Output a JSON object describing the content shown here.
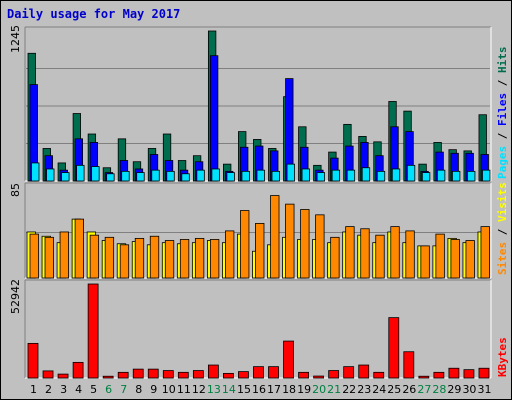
{
  "title": "Daily usage for May 2017",
  "colors": {
    "hits": "#006e4e",
    "files": "#0000ff",
    "pages": "#00e0ff",
    "visits": "#ffff00",
    "sites": "#ff8800",
    "kbytes": "#ff0000",
    "weekday": "#000000",
    "weekend": "#008040",
    "panel_bg": "#c0c0c0"
  },
  "chart_data": [
    {
      "type": "bar",
      "name": "hits-files-pages",
      "categories": [
        "1",
        "2",
        "3",
        "4",
        "5",
        "6",
        "7",
        "8",
        "9",
        "10",
        "11",
        "12",
        "13",
        "14",
        "15",
        "16",
        "17",
        "18",
        "19",
        "20",
        "21",
        "22",
        "23",
        "24",
        "25",
        "26",
        "27",
        "28",
        "29",
        "30",
        "31"
      ],
      "weekend_days": [
        "6",
        "7",
        "13",
        "14",
        "20",
        "21",
        "27",
        "28"
      ],
      "ymax_label": "1245",
      "ymax": 1245,
      "side_label_parts": [
        "Pages",
        " / ",
        "Files",
        " / ",
        "Hits"
      ],
      "series": [
        {
          "name": "Hits",
          "color_key": "hits",
          "values": [
            1060,
            270,
            150,
            560,
            390,
            110,
            350,
            160,
            270,
            390,
            170,
            210,
            1245,
            140,
            410,
            345,
            270,
            700,
            450,
            130,
            240,
            470,
            370,
            325,
            660,
            580,
            140,
            320,
            260,
            250,
            550
          ]
        },
        {
          "name": "Files",
          "color_key": "files",
          "values": [
            800,
            210,
            90,
            350,
            320,
            70,
            170,
            100,
            220,
            170,
            90,
            160,
            1040,
            80,
            280,
            290,
            250,
            850,
            280,
            90,
            190,
            290,
            320,
            210,
            450,
            410,
            80,
            240,
            230,
            230,
            220
          ]
        },
        {
          "name": "Pages",
          "color_key": "pages",
          "values": [
            150,
            100,
            70,
            130,
            120,
            60,
            80,
            70,
            90,
            80,
            60,
            90,
            100,
            70,
            80,
            90,
            80,
            140,
            100,
            70,
            90,
            90,
            110,
            80,
            100,
            130,
            70,
            90,
            80,
            80,
            90
          ]
        }
      ]
    },
    {
      "type": "bar",
      "name": "visits-sites",
      "categories": [
        "1",
        "2",
        "3",
        "4",
        "5",
        "6",
        "7",
        "8",
        "9",
        "10",
        "11",
        "12",
        "13",
        "14",
        "15",
        "16",
        "17",
        "18",
        "19",
        "20",
        "21",
        "22",
        "23",
        "24",
        "25",
        "26",
        "27",
        "28",
        "29",
        "30",
        "31"
      ],
      "ymax_label": "85",
      "ymax": 85,
      "side_label_parts": [
        "Sites",
        " / ",
        "Visits"
      ],
      "series": [
        {
          "name": "Visits",
          "color_key": "visits",
          "values": [
            43,
            39,
            33,
            55,
            43,
            35,
            32,
            34,
            31,
            33,
            32,
            33,
            35,
            33,
            41,
            25,
            31,
            38,
            36,
            36,
            33,
            43,
            40,
            33,
            43,
            33,
            30,
            30,
            37,
            33,
            43
          ]
        },
        {
          "name": "Sites",
          "color_key": "sites",
          "values": [
            41,
            38,
            43,
            55,
            40,
            38,
            31,
            37,
            39,
            35,
            36,
            37,
            36,
            44,
            63,
            51,
            77,
            69,
            64,
            59,
            38,
            48,
            46,
            40,
            48,
            44,
            30,
            41,
            36,
            35,
            48
          ]
        }
      ]
    },
    {
      "type": "bar",
      "name": "kbytes",
      "categories": [
        "1",
        "2",
        "3",
        "4",
        "5",
        "6",
        "7",
        "8",
        "9",
        "10",
        "11",
        "12",
        "13",
        "14",
        "15",
        "16",
        "17",
        "18",
        "19",
        "20",
        "21",
        "22",
        "23",
        "24",
        "25",
        "26",
        "27",
        "28",
        "29",
        "30",
        "31"
      ],
      "ymax_label": "52942",
      "ymax": 52942,
      "side_label_parts": [
        "KBytes"
      ],
      "series": [
        {
          "name": "KBytes",
          "color_key": "kbytes",
          "values": [
            19500,
            4000,
            2200,
            8800,
            52942,
            1000,
            3200,
            5000,
            5000,
            4200,
            3200,
            4200,
            7300,
            2600,
            3600,
            6400,
            6400,
            20800,
            3200,
            1100,
            4200,
            6400,
            7300,
            3200,
            34000,
            14800,
            1000,
            3200,
            5500,
            4700,
            5500
          ]
        }
      ]
    }
  ]
}
